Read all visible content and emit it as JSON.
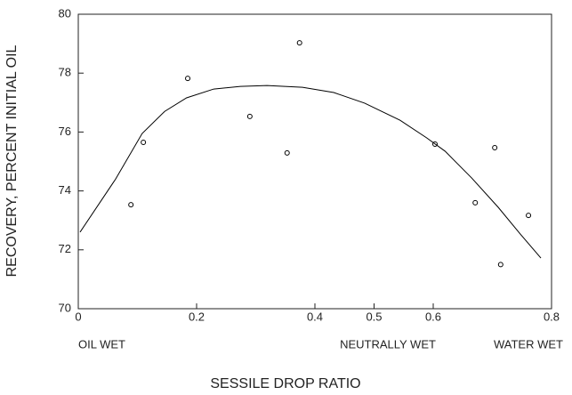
{
  "chart_data": {
    "type": "scatter",
    "xlabel": "SESSILE DROP RATIO",
    "ylabel": "RECOVERY, PERCENT INITIAL OIL",
    "annotations": [
      "OIL WET",
      "NEUTRALLY WET",
      "WATER WET"
    ],
    "xlim": [
      0,
      0.8
    ],
    "xticks": [
      0,
      0.2,
      0.4,
      0.5,
      0.6,
      0.8
    ],
    "ylim": [
      70,
      80
    ],
    "yticks": [
      70,
      72,
      74,
      76,
      78,
      80
    ],
    "grid": false,
    "series": [
      {
        "mode": "markers",
        "color": "#000000",
        "x": [
          0.089,
          0.11,
          0.185,
          0.29,
          0.353,
          0.374,
          0.603,
          0.671,
          0.704,
          0.714,
          0.761
        ],
        "values": [
          73.53,
          75.65,
          77.82,
          76.53,
          75.29,
          79.03,
          75.59,
          73.6,
          75.47,
          71.5,
          73.17
        ]
      },
      {
        "mode": "lines",
        "color": "#000000",
        "x": [
          0.003,
          0.063,
          0.108,
          0.146,
          0.183,
          0.229,
          0.274,
          0.319,
          0.379,
          0.432,
          0.484,
          0.544,
          0.589,
          0.62,
          0.665,
          0.71,
          0.747,
          0.782
        ],
        "values": [
          72.6,
          74.4,
          75.95,
          76.7,
          77.16,
          77.46,
          77.55,
          77.58,
          77.52,
          77.34,
          76.98,
          76.4,
          75.8,
          75.35,
          74.44,
          73.44,
          72.54,
          71.72
        ]
      }
    ]
  }
}
